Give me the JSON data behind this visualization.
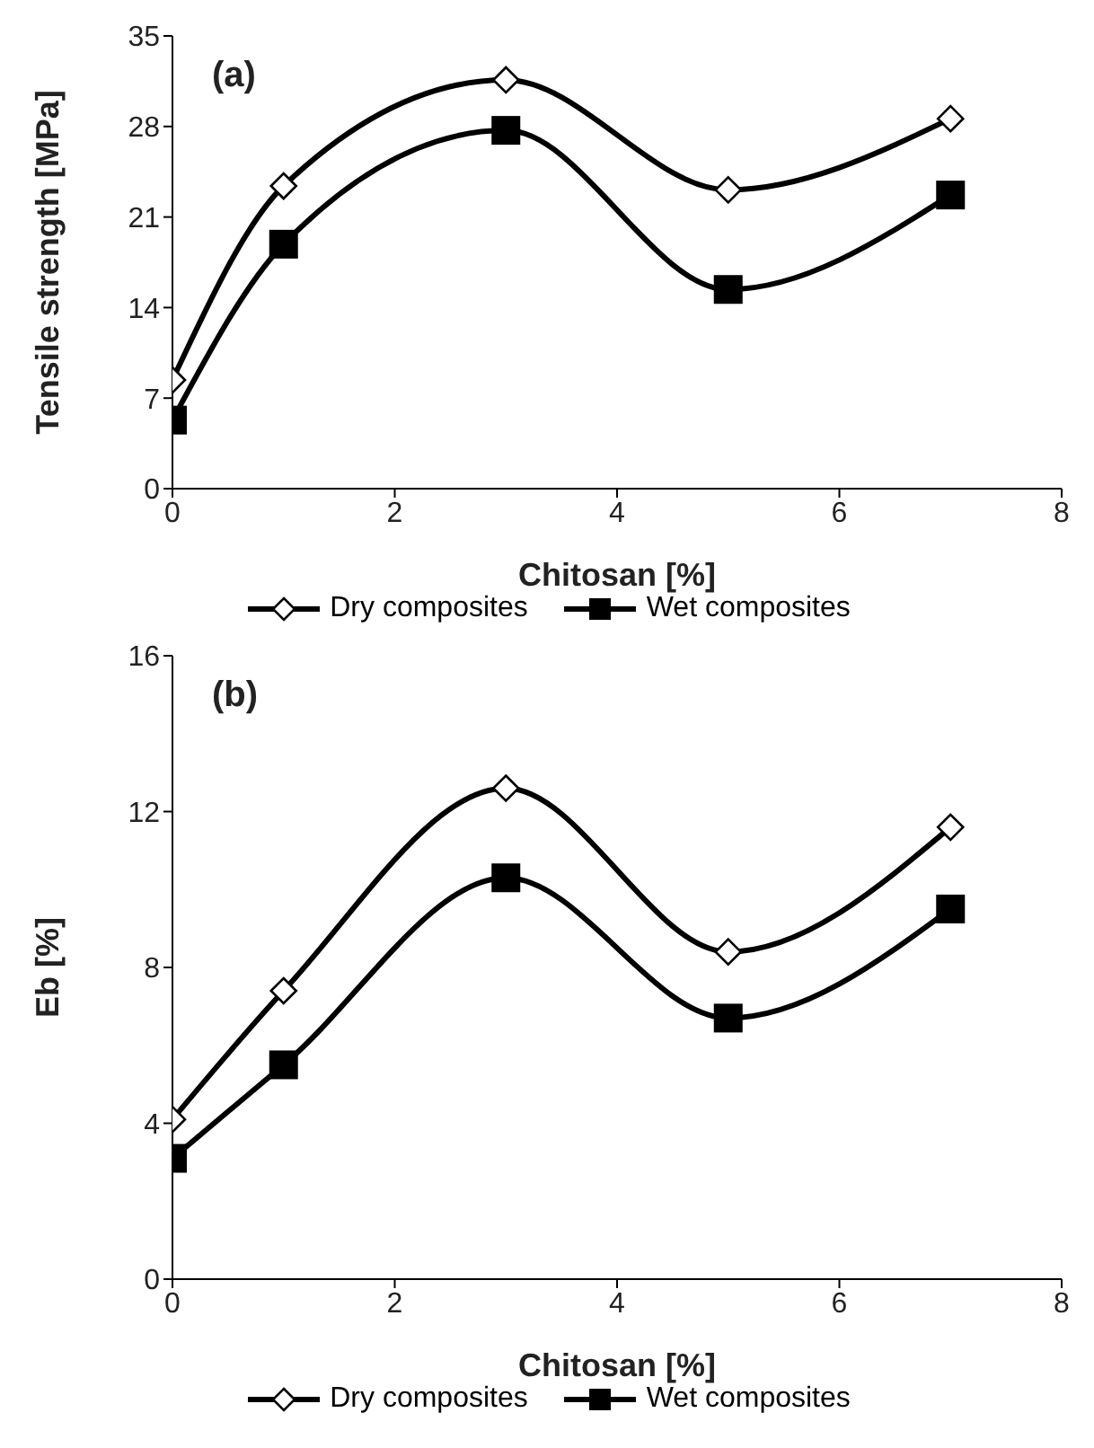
{
  "chart_data": [
    {
      "type": "line",
      "title": "(a)",
      "xlabel": "Chitosan [%]",
      "ylabel": "Tensile strength [MPa]",
      "x": [
        0,
        1,
        3,
        5,
        7
      ],
      "xlim": [
        0,
        8
      ],
      "xticks": [
        0,
        2,
        4,
        6,
        8
      ],
      "ylim": [
        0,
        35
      ],
      "yticks": [
        0,
        7,
        14,
        21,
        28,
        35
      ],
      "grid": false,
      "legend": "bottom",
      "series": [
        {
          "name": "Dry composites",
          "color": "#000000",
          "marker": "diamond",
          "values": [
            8.4,
            23.4,
            31.6,
            23.1,
            28.6
          ]
        },
        {
          "name": "Wet composites",
          "color": "#000000",
          "marker": "square",
          "values": [
            5.3,
            18.9,
            27.7,
            15.4,
            22.7
          ]
        }
      ]
    },
    {
      "type": "line",
      "title": "(b)",
      "xlabel": "Chitosan [%]",
      "ylabel": "Eb [%]",
      "x": [
        0,
        1,
        3,
        5,
        7
      ],
      "xlim": [
        0,
        8
      ],
      "xticks": [
        0,
        2,
        4,
        6,
        8
      ],
      "ylim": [
        0,
        16
      ],
      "yticks": [
        0,
        4,
        8,
        12,
        16
      ],
      "grid": false,
      "legend": "bottom",
      "series": [
        {
          "name": "Dry composites",
          "color": "#000000",
          "marker": "diamond",
          "values": [
            4.1,
            7.4,
            12.6,
            8.4,
            11.6
          ]
        },
        {
          "name": "Wet composites",
          "color": "#000000",
          "marker": "square",
          "values": [
            3.1,
            5.5,
            10.3,
            6.7,
            9.5
          ]
        }
      ]
    }
  ]
}
